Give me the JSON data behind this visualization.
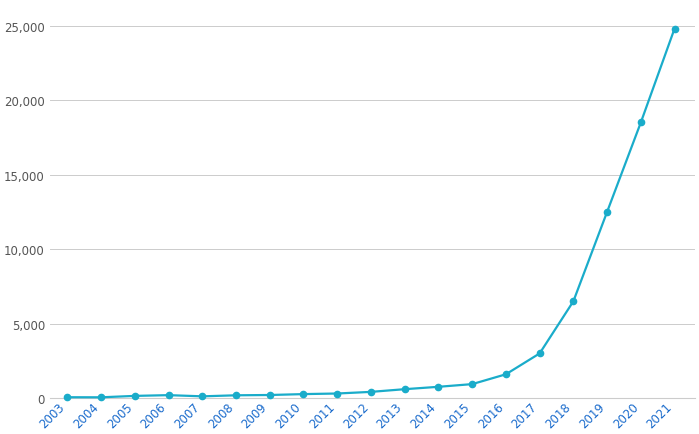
{
  "years": [
    2003,
    2004,
    2005,
    2006,
    2007,
    2008,
    2009,
    2010,
    2011,
    2012,
    2013,
    2014,
    2015,
    2016,
    2017,
    2018,
    2019,
    2020,
    2021
  ],
  "values": [
    60,
    55,
    150,
    200,
    120,
    190,
    210,
    270,
    310,
    420,
    600,
    760,
    940,
    1600,
    3000,
    6500,
    12500,
    18500,
    24800
  ],
  "line_color": "#1aacca",
  "marker": "o",
  "marker_size": 4.5,
  "linewidth": 1.6,
  "ylim": [
    0,
    26500
  ],
  "yticks": [
    0,
    5000,
    10000,
    15000,
    20000,
    25000
  ],
  "background_color": "#ffffff",
  "grid_color": "#cccccc",
  "xlabel_color": "#1a6bcc",
  "ylabel_color": "#555555",
  "tick_label_fontsize": 8.5
}
